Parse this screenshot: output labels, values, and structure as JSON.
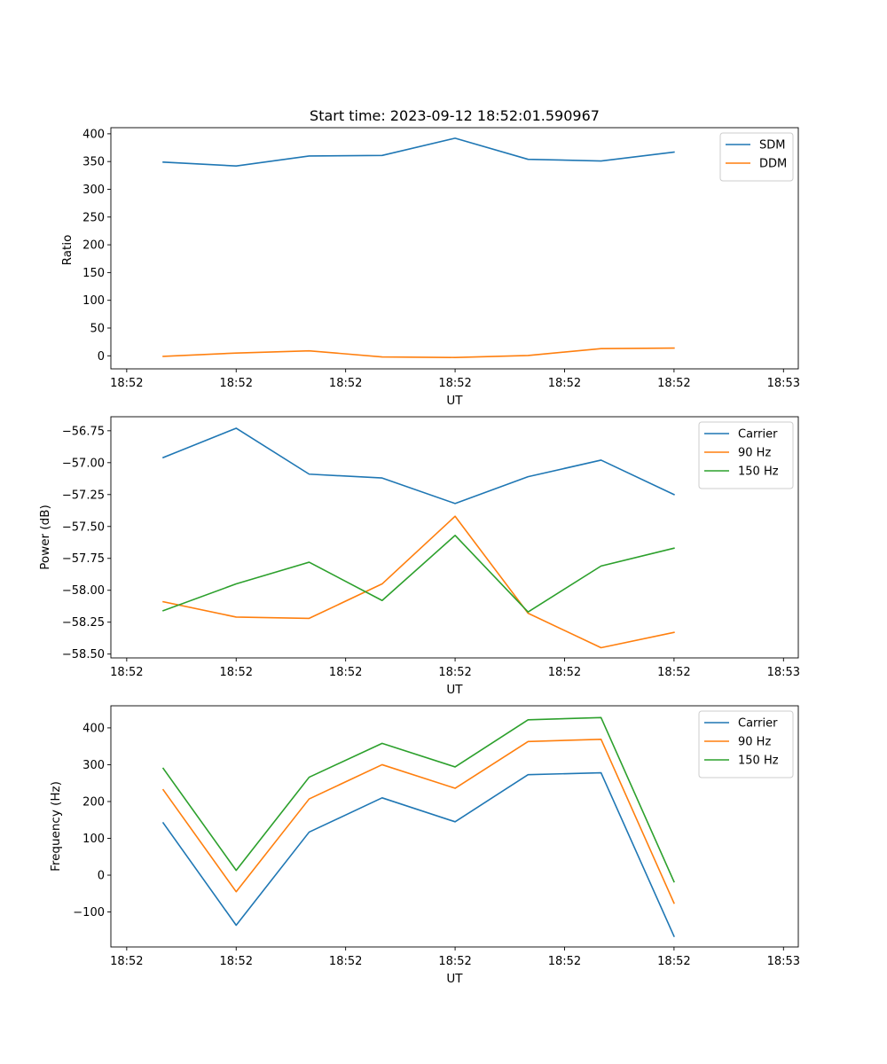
{
  "title": "Start time: 2023-09-12 18:52:01.590967",
  "colors": {
    "blue": "#1f77b4",
    "orange": "#ff7f0e",
    "green": "#2ca02c"
  },
  "chart_data": [
    {
      "type": "line",
      "title": "Start time: 2023-09-12 18:52:01.590967",
      "xlabel": "UT",
      "ylabel": "Ratio",
      "x": [
        1,
        2,
        3,
        4,
        5,
        6,
        7,
        8
      ],
      "xlim": [
        0.283,
        9.703
      ],
      "xticks": [
        0.5,
        2,
        3.5,
        5,
        6.5,
        8,
        9.5
      ],
      "xtick_labels": [
        "18:52",
        "18:52",
        "18:52",
        "18:52",
        "18:52",
        "18:52",
        "18:53"
      ],
      "ylim": [
        -23.5,
        411
      ],
      "yticks": [
        0,
        50,
        100,
        150,
        200,
        250,
        300,
        350,
        400
      ],
      "ytick_labels": [
        "0",
        "50",
        "100",
        "150",
        "200",
        "250",
        "300",
        "350",
        "400"
      ],
      "legend": "top-right",
      "series": [
        {
          "name": "SDM",
          "color": "#1f77b4",
          "values": [
            349,
            342,
            360,
            361,
            392,
            354,
            351,
            367
          ]
        },
        {
          "name": "DDM",
          "color": "#ff7f0e",
          "values": [
            -1,
            5,
            9,
            -2,
            -3,
            0.5,
            13,
            14
          ]
        }
      ]
    },
    {
      "type": "line",
      "title": "",
      "xlabel": "UT",
      "ylabel": "Power (dB)",
      "x": [
        1,
        2,
        3,
        4,
        5,
        6,
        7,
        8
      ],
      "xlim": [
        0.283,
        9.703
      ],
      "xticks": [
        0.5,
        2,
        3.5,
        5,
        6.5,
        8,
        9.5
      ],
      "xtick_labels": [
        "18:52",
        "18:52",
        "18:52",
        "18:52",
        "18:52",
        "18:52",
        "18:53"
      ],
      "ylim": [
        -58.53,
        -56.64
      ],
      "yticks": [
        -56.75,
        -57.0,
        -57.25,
        -57.5,
        -57.75,
        -58.0,
        -58.25,
        -58.5
      ],
      "ytick_labels": [
        "−56.75",
        "−57.00",
        "−57.25",
        "−57.50",
        "−57.75",
        "−58.00",
        "−58.25",
        "−58.50"
      ],
      "legend": "top-right",
      "series": [
        {
          "name": "Carrier",
          "color": "#1f77b4",
          "values": [
            -56.96,
            -56.73,
            -57.09,
            -57.12,
            -57.32,
            -57.11,
            -56.98,
            -57.25
          ]
        },
        {
          "name": "90 Hz",
          "color": "#ff7f0e",
          "values": [
            -58.09,
            -58.21,
            -58.22,
            -57.95,
            -57.42,
            -58.18,
            -58.45,
            -58.33
          ]
        },
        {
          "name": "150 Hz",
          "color": "#2ca02c",
          "values": [
            -58.16,
            -57.95,
            -57.78,
            -58.08,
            -57.57,
            -58.17,
            -57.81,
            -57.67
          ]
        }
      ]
    },
    {
      "type": "line",
      "title": "",
      "xlabel": "UT",
      "ylabel": "Frequency (Hz)",
      "x": [
        1,
        2,
        3,
        4,
        5,
        6,
        7,
        8
      ],
      "xlim": [
        0.283,
        9.703
      ],
      "xticks": [
        0.5,
        2,
        3.5,
        5,
        6.5,
        8,
        9.5
      ],
      "xtick_labels": [
        "18:52",
        "18:52",
        "18:52",
        "18:52",
        "18:52",
        "18:52",
        "18:53"
      ],
      "ylim": [
        -195,
        460
      ],
      "yticks": [
        -100,
        0,
        100,
        200,
        300,
        400
      ],
      "ytick_labels": [
        "−100",
        "0",
        "100",
        "200",
        "300",
        "400"
      ],
      "legend": "top-right",
      "series": [
        {
          "name": "Carrier",
          "color": "#1f77b4",
          "values": [
            142,
            -136,
            117,
            210,
            145,
            273,
            278,
            -166
          ]
        },
        {
          "name": "90 Hz",
          "color": "#ff7f0e",
          "values": [
            232,
            -45,
            207,
            300,
            236,
            363,
            369,
            -76
          ]
        },
        {
          "name": "150 Hz",
          "color": "#2ca02c",
          "values": [
            290,
            13,
            266,
            358,
            294,
            422,
            428,
            -18
          ]
        }
      ]
    }
  ]
}
